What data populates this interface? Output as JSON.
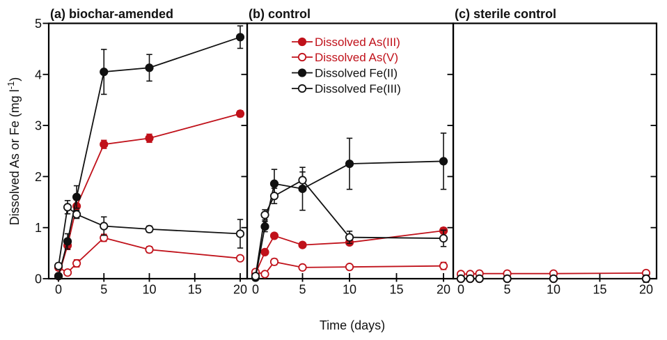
{
  "axis": {
    "x_label": "Time (days)",
    "y_label": {
      "prefix": "Dissolved As or Fe (mg l",
      "sup": "-1",
      "suffix": ")"
    }
  },
  "chart_data": {
    "type": "line",
    "x_days": [
      0,
      1,
      2,
      5,
      10,
      20
    ],
    "x_ticks": [
      0,
      5,
      10,
      15,
      20
    ],
    "y_ticks": [
      0,
      1,
      2,
      3,
      4,
      5
    ],
    "xlim": [
      -1,
      21
    ],
    "ylim": [
      0,
      5
    ],
    "grid": false,
    "legend_position": "top of panel b",
    "colors": {
      "red_series": "#c0111a",
      "black_series": "#111111"
    },
    "series_meta": [
      {
        "id": "as3",
        "label": "Dissolved As(III)",
        "color": "#c0111a",
        "marker": "filled-circle"
      },
      {
        "id": "as5",
        "label": "Dissolved As(V)",
        "color": "#c0111a",
        "marker": "open-circle"
      },
      {
        "id": "fe2",
        "label": "Dissolved Fe(II)",
        "color": "#111111",
        "marker": "filled-circle"
      },
      {
        "id": "fe3",
        "label": "Dissolved Fe(III)",
        "color": "#111111",
        "marker": "open-circle"
      }
    ],
    "panels": [
      {
        "title": "(a) biochar-amended",
        "series": {
          "as3": {
            "values": [
              0.05,
              0.65,
              1.42,
              2.63,
              2.75,
              3.23
            ],
            "errors": [
              0,
              0.08,
              0.12,
              0.08,
              0.08,
              0.06
            ]
          },
          "as5": {
            "values": [
              0.22,
              0.12,
              0.3,
              0.8,
              0.57,
              0.4
            ],
            "errors": [
              0.06,
              0.04,
              0.07,
              0.07,
              0.06,
              0.05
            ]
          },
          "fe2": {
            "values": [
              0.05,
              0.73,
              1.6,
              4.05,
              4.13,
              4.73
            ],
            "errors": [
              0,
              0.15,
              0.22,
              0.44,
              0.26,
              0.22
            ]
          },
          "fe3": {
            "values": [
              0.25,
              1.4,
              1.26,
              1.03,
              0.97,
              0.88
            ],
            "errors": [
              0.05,
              0.13,
              0.08,
              0.18,
              0.06,
              0.28
            ]
          }
        }
      },
      {
        "title": "(b) control",
        "series": {
          "as3": {
            "values": [
              0.1,
              0.52,
              0.84,
              0.66,
              0.71,
              0.94
            ],
            "errors": [
              0.03,
              0.05,
              0.05,
              0.05,
              0.05,
              0.06
            ]
          },
          "as5": {
            "values": [
              0.13,
              0.09,
              0.33,
              0.22,
              0.23,
              0.25
            ],
            "errors": [
              0.03,
              0.03,
              0.06,
              0.04,
              0.04,
              0.07
            ]
          },
          "fe2": {
            "values": [
              0.02,
              1.02,
              1.86,
              1.76,
              2.25,
              2.3
            ],
            "errors": [
              0,
              0.1,
              0.28,
              0.42,
              0.5,
              0.55
            ]
          },
          "fe3": {
            "values": [
              0.05,
              1.25,
              1.62,
              1.93,
              0.81,
              0.79
            ],
            "errors": [
              0,
              0.1,
              0.15,
              0.16,
              0.12,
              0.16
            ]
          }
        }
      },
      {
        "title": "(c) sterile control",
        "series": {
          "as3": {
            "values": [
              0.0,
              0.0,
              0.0,
              0.0,
              0.0,
              0.0
            ],
            "errors": [
              0,
              0,
              0,
              0,
              0,
              0
            ]
          },
          "as5": {
            "values": [
              0.09,
              0.09,
              0.1,
              0.1,
              0.1,
              0.11
            ],
            "errors": [
              0,
              0,
              0,
              0,
              0,
              0.05
            ]
          },
          "fe2": {
            "values": [
              0.0,
              0.0,
              0.0,
              0.0,
              0.0,
              0.0
            ],
            "errors": [
              0,
              0,
              0,
              0,
              0,
              0.07
            ]
          },
          "fe3": {
            "values": [
              0.0,
              0.0,
              0.0,
              0.0,
              0.0,
              0.0
            ],
            "errors": [
              0,
              0,
              0,
              0,
              0,
              0
            ]
          }
        }
      }
    ]
  }
}
